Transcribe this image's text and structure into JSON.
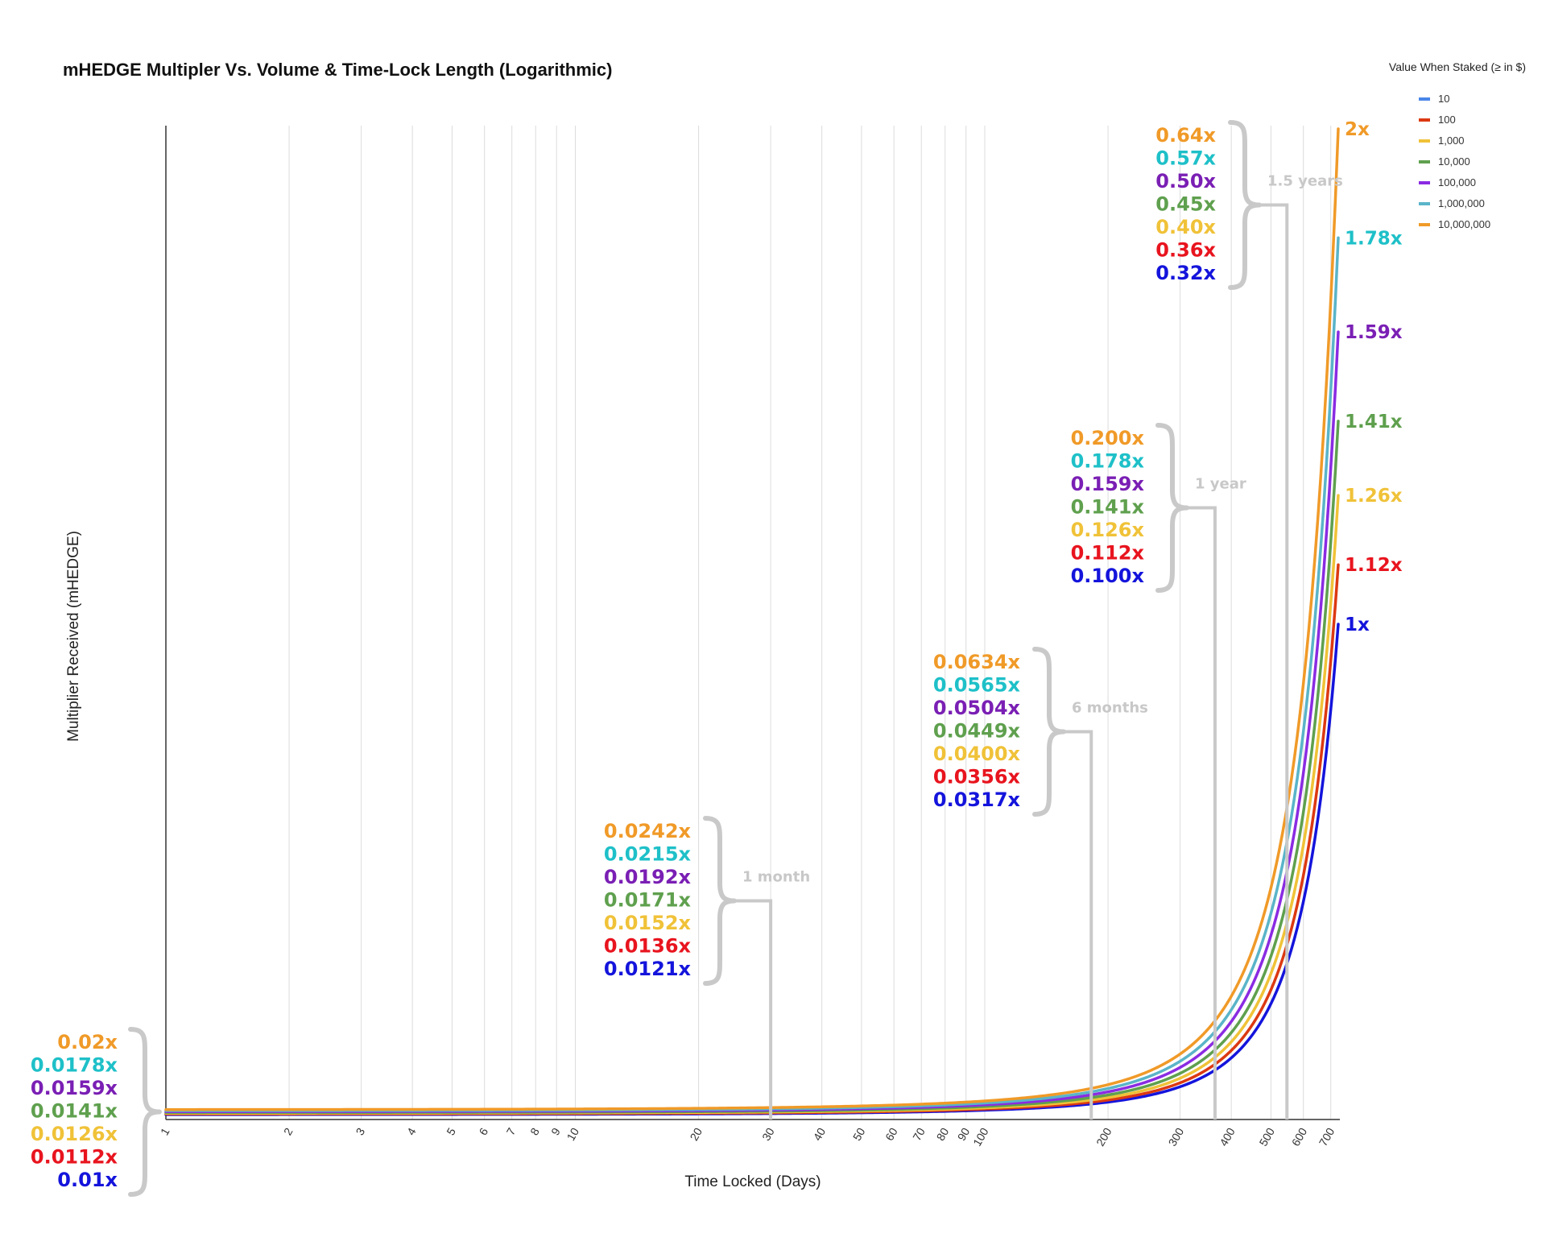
{
  "colors": {
    "blue": "#1414dc",
    "red": "#e8141e",
    "yellow": "#f0c238",
    "green": "#5fa04e",
    "purple": "#7a1fb4",
    "teal": "#1ec0c8",
    "orange": "#f09a28",
    "bracket": "#c9c9c9"
  },
  "chart_data": {
    "type": "line",
    "title": "mHEDGE Multipler Vs. Volume & Time-Lock Length (Logarithmic)",
    "xlabel": "Time Locked (Days)",
    "ylabel": "Multiplier Received (mHEDGE)",
    "x_scale": "log",
    "xlim": [
      1,
      730
    ],
    "ylim": [
      0,
      2
    ],
    "x_ticks": [
      "1",
      "2",
      "3",
      "4",
      "5",
      "6",
      "7",
      "8",
      "9",
      "10",
      "20",
      "30",
      "40",
      "50",
      "60",
      "70",
      "80",
      "90",
      "100",
      "200",
      "300",
      "400",
      "500",
      "600",
      "700"
    ],
    "grid": "vertical",
    "legend": {
      "title": "Value When Staked (≥ in $)",
      "position": "top-right",
      "entries": [
        {
          "label": "10",
          "color": "#4a86e8"
        },
        {
          "label": "100",
          "color": "#dc3912"
        },
        {
          "label": "1,000",
          "color": "#f0c238"
        },
        {
          "label": "10,000",
          "color": "#5fa04e"
        },
        {
          "label": "100,000",
          "color": "#8a2be2"
        },
        {
          "label": "1,000,000",
          "color": "#5ab4c8"
        },
        {
          "label": "10,000,000",
          "color": "#f09a28"
        }
      ]
    },
    "series": [
      {
        "name": "10",
        "color": "#1414dc",
        "x": [
          1,
          30,
          182,
          365,
          547,
          730
        ],
        "y": [
          0.01,
          0.0121,
          0.0317,
          0.1,
          0.32,
          1.0
        ],
        "end_label": "1x"
      },
      {
        "name": "100",
        "color": "#dc3912",
        "x": [
          1,
          30,
          182,
          365,
          547,
          730
        ],
        "y": [
          0.0112,
          0.0136,
          0.0356,
          0.112,
          0.36,
          1.12
        ],
        "end_label": "1.12x"
      },
      {
        "name": "1,000",
        "color": "#f0c238",
        "x": [
          1,
          30,
          182,
          365,
          547,
          730
        ],
        "y": [
          0.0126,
          0.0152,
          0.04,
          0.126,
          0.4,
          1.26
        ],
        "end_label": "1.26x"
      },
      {
        "name": "10,000",
        "color": "#5fa04e",
        "x": [
          1,
          30,
          182,
          365,
          547,
          730
        ],
        "y": [
          0.0141,
          0.0171,
          0.0449,
          0.141,
          0.45,
          1.41
        ],
        "end_label": "1.41x"
      },
      {
        "name": "100,000",
        "color": "#8a2be2",
        "x": [
          1,
          30,
          182,
          365,
          547,
          730
        ],
        "y": [
          0.0159,
          0.0192,
          0.0504,
          0.159,
          0.5,
          1.59
        ],
        "end_label": "1.59x"
      },
      {
        "name": "1,000,000",
        "color": "#5ab4c8",
        "x": [
          1,
          30,
          182,
          365,
          547,
          730
        ],
        "y": [
          0.0178,
          0.0215,
          0.0565,
          0.178,
          0.57,
          1.78
        ],
        "end_label": "1.78x"
      },
      {
        "name": "10,000,000",
        "color": "#f09a28",
        "x": [
          1,
          30,
          182,
          365,
          547,
          730
        ],
        "y": [
          0.02,
          0.0242,
          0.0634,
          0.2,
          0.64,
          2.0
        ],
        "end_label": "2x"
      }
    ],
    "annotations": [
      {
        "period": "",
        "day": 1,
        "values": [
          "0.02x",
          "0.0178x",
          "0.0159x",
          "0.0141x",
          "0.0126x",
          "0.0112x",
          "0.01x"
        ]
      },
      {
        "period": "1 month",
        "day": 30,
        "values": [
          "0.0242x",
          "0.0215x",
          "0.0192x",
          "0.0171x",
          "0.0152x",
          "0.0136x",
          "0.0121x"
        ]
      },
      {
        "period": "6 months",
        "day": 182,
        "values": [
          "0.0634x",
          "0.0565x",
          "0.0504x",
          "0.0449x",
          "0.0400x",
          "0.0356x",
          "0.0317x"
        ]
      },
      {
        "period": "1 year",
        "day": 365,
        "values": [
          "0.200x",
          "0.178x",
          "0.159x",
          "0.141x",
          "0.126x",
          "0.112x",
          "0.100x"
        ]
      },
      {
        "period": "1.5 years",
        "day": 547,
        "values": [
          "0.64x",
          "0.57x",
          "0.50x",
          "0.45x",
          "0.40x",
          "0.36x",
          "0.32x"
        ]
      }
    ]
  }
}
